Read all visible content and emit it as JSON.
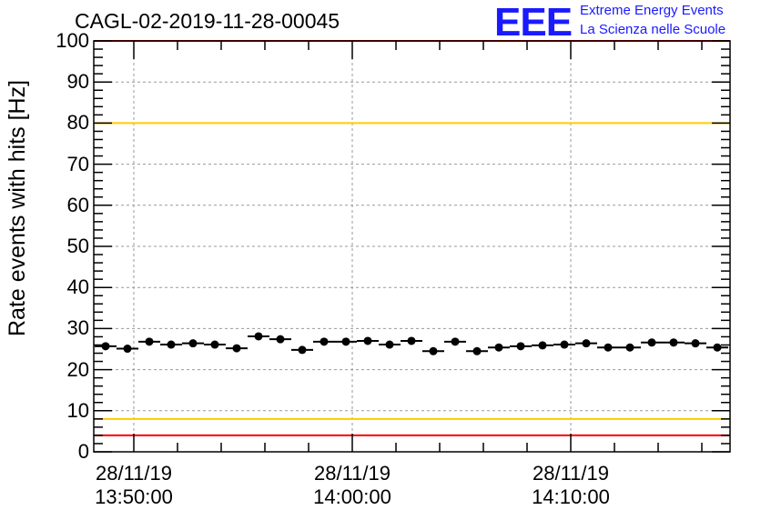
{
  "chart_data": {
    "type": "scatter",
    "title": "CAGL-02-2019-11-28-00045",
    "ylabel": "Rate events with hits [Hz]",
    "xlabel": "",
    "ylim": [
      0,
      100
    ],
    "yticks": [
      0,
      10,
      20,
      30,
      40,
      50,
      60,
      70,
      80,
      90,
      100
    ],
    "xticks": [
      {
        "date": "28/11/19",
        "time": "13:50:00",
        "minute": 0
      },
      {
        "date": "28/11/19",
        "time": "14:00:00",
        "minute": 10
      },
      {
        "date": "28/11/19",
        "time": "14:10:00",
        "minute": 20
      }
    ],
    "x_minutes_from_1350": [
      -1.3,
      -0.3,
      0.7,
      1.7,
      2.7,
      3.7,
      4.7,
      5.7,
      6.7,
      7.7,
      8.7,
      9.7,
      10.7,
      11.7,
      12.7,
      13.7,
      14.7,
      15.7,
      16.7,
      17.7,
      18.7,
      19.7,
      20.7,
      21.7,
      22.7,
      23.7,
      24.7,
      25.7,
      26.7
    ],
    "xlim_minutes": [
      -1.8,
      27.3
    ],
    "values": [
      25.7,
      25.1,
      26.8,
      26.1,
      26.4,
      26.1,
      25.2,
      28.1,
      27.4,
      24.8,
      26.8,
      26.8,
      27.0,
      26.1,
      27.0,
      24.5,
      26.8,
      24.5,
      25.4,
      25.7,
      25.9,
      26.1,
      26.4,
      25.4,
      25.4,
      26.6,
      26.6,
      26.4,
      25.4
    ],
    "bin_width_minutes": 1,
    "reference_lines": [
      {
        "value": 100,
        "color": "#ff0000"
      },
      {
        "value": 80,
        "color": "#ffcc00"
      },
      {
        "value": 8,
        "color": "#ffcc00"
      },
      {
        "value": 4,
        "color": "#ff0000"
      }
    ],
    "grid": true,
    "legend": "none"
  },
  "logo": {
    "text": "EEE",
    "line1": "Extreme Energy Events",
    "line2": "La Scienza nelle Scuole"
  }
}
